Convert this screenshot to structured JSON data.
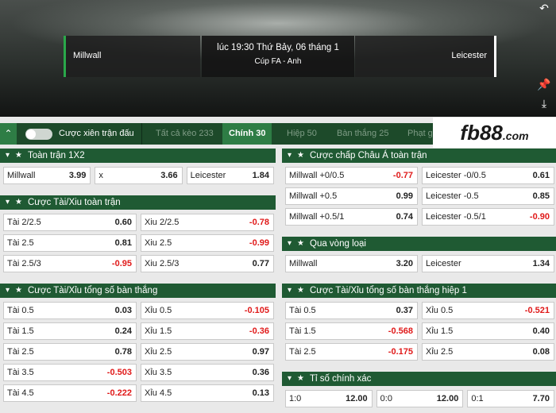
{
  "header": {
    "match_time": "lúc 19:30 Thứ Bảy, 06 tháng 1",
    "competition": "Cúp FA - Anh",
    "home": "Millwall",
    "away": "Leicester"
  },
  "toolbar": {
    "parlay_label": "Cược xiên trận đấu",
    "tabs": [
      {
        "label": "Tất cả kèo 233",
        "active": false
      },
      {
        "label": "Chính 30",
        "active": true
      },
      {
        "label": "Hiệp 50",
        "active": false
      },
      {
        "label": "Bàn thắng 25",
        "active": false
      },
      {
        "label": "Phạt g",
        "active": false
      }
    ]
  },
  "logo": {
    "brand": "fb",
    "accent": "88",
    "suffix": ".com"
  },
  "columns": [
    [
      {
        "title": "Toàn trận 1X2",
        "rows": [
          [
            {
              "label": "Millwall",
              "odds": "3.99"
            },
            {
              "label": "x",
              "odds": "3.66"
            },
            {
              "label": "Leicester",
              "odds": "1.84"
            }
          ]
        ]
      },
      {
        "title": "Cược Tài/Xiu toàn trận",
        "rows": [
          [
            {
              "label": "Tài 2/2.5",
              "odds": "0.60"
            },
            {
              "label": "Xiu 2/2.5",
              "odds": "-0.78"
            }
          ],
          [
            {
              "label": "Tài 2.5",
              "odds": "0.81"
            },
            {
              "label": "Xiu 2.5",
              "odds": "-0.99"
            }
          ],
          [
            {
              "label": "Tài 2.5/3",
              "odds": "-0.95"
            },
            {
              "label": "Xiu 2.5/3",
              "odds": "0.77"
            }
          ]
        ]
      },
      {
        "title": "Cược Tài/Xỉu tổng số bàn thắng",
        "rows": [
          [
            {
              "label": "Tài 0.5",
              "odds": "0.03"
            },
            {
              "label": "Xỉu 0.5",
              "odds": "-0.105"
            }
          ],
          [
            {
              "label": "Tài 1.5",
              "odds": "0.24"
            },
            {
              "label": "Xỉu 1.5",
              "odds": "-0.36"
            }
          ],
          [
            {
              "label": "Tài 2.5",
              "odds": "0.78"
            },
            {
              "label": "Xỉu 2.5",
              "odds": "0.97"
            }
          ],
          [
            {
              "label": "Tài 3.5",
              "odds": "-0.503"
            },
            {
              "label": "Xỉu 3.5",
              "odds": "0.36"
            }
          ],
          [
            {
              "label": "Tài 4.5",
              "odds": "-0.222"
            },
            {
              "label": "Xỉu 4.5",
              "odds": "0.13"
            }
          ]
        ]
      }
    ],
    [
      {
        "title": "Cược chấp Châu Á toàn trận",
        "rows": [
          [
            {
              "label": "Millwall +0/0.5",
              "odds": "-0.77"
            },
            {
              "label": "Leicester -0/0.5",
              "odds": "0.61"
            }
          ],
          [
            {
              "label": "Millwall +0.5",
              "odds": "0.99"
            },
            {
              "label": "Leicester -0.5",
              "odds": "0.85"
            }
          ],
          [
            {
              "label": "Millwall +0.5/1",
              "odds": "0.74"
            },
            {
              "label": "Leicester -0.5/1",
              "odds": "-0.90"
            }
          ]
        ]
      },
      {
        "title": "Qua vòng loại",
        "rows": [
          [
            {
              "label": "Millwall",
              "odds": "3.20"
            },
            {
              "label": "Leicester",
              "odds": "1.34"
            }
          ]
        ]
      },
      {
        "title": "Cược Tài/Xỉu tổng số bàn thắng hiệp 1",
        "rows": [
          [
            {
              "label": "Tài 0.5",
              "odds": "0.37"
            },
            {
              "label": "Xỉu 0.5",
              "odds": "-0.521"
            }
          ],
          [
            {
              "label": "Tài 1.5",
              "odds": "-0.568"
            },
            {
              "label": "Xỉu 1.5",
              "odds": "0.40"
            }
          ],
          [
            {
              "label": "Tài 2.5",
              "odds": "-0.175"
            },
            {
              "label": "Xỉu 2.5",
              "odds": "0.08"
            }
          ]
        ]
      },
      {
        "title": "Tỉ số chính xác",
        "rows": [
          [
            {
              "label": "1:0",
              "odds": "12.00"
            },
            {
              "label": "0:0",
              "odds": "12.00"
            },
            {
              "label": "0:1",
              "odds": "7.70"
            }
          ]
        ]
      }
    ]
  ]
}
